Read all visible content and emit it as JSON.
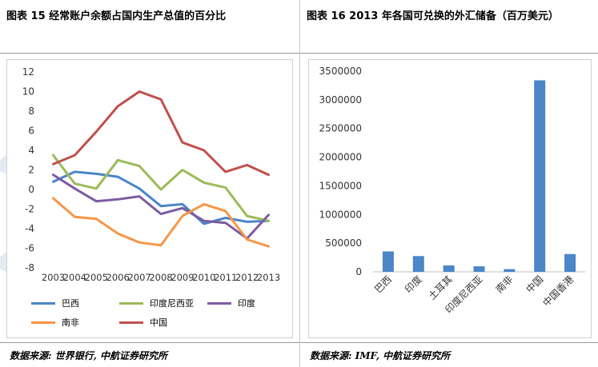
{
  "left_panel": {
    "title": "图表 15  经常账户余额占国内生产总值的百分比",
    "source": "数据来源: 世界银行, 中航证券研究所"
  },
  "right_panel": {
    "title": "图表 16 2013 年各国可兑换的外汇储备（百万美元）",
    "source": "数据来源: IMF, 中航证券研究所"
  },
  "chart_data": [
    {
      "type": "line",
      "title": "",
      "xlabel": "",
      "ylabel": "",
      "x": [
        "2003",
        "2004",
        "2005",
        "2006",
        "2007",
        "2008",
        "2009",
        "2010",
        "2011",
        "2012",
        "2013"
      ],
      "ylim": [
        -8,
        12
      ],
      "yticks": [
        -8,
        -6,
        -4,
        -2,
        0,
        2,
        4,
        6,
        8,
        10,
        12
      ],
      "grid": false,
      "legend_position": "bottom",
      "series": [
        {
          "name": "巴西",
          "color": "#4a86c8",
          "values": [
            0.8,
            1.8,
            1.6,
            1.3,
            0.1,
            -1.7,
            -1.5,
            -3.5,
            -2.9,
            -3.3,
            -3.2
          ]
        },
        {
          "name": "印度尼西亚",
          "color": "#9bbb59",
          "values": [
            3.5,
            0.6,
            0.1,
            3.0,
            2.4,
            0.0,
            2.0,
            0.7,
            0.2,
            -2.7,
            -3.2
          ]
        },
        {
          "name": "印度",
          "color": "#7e5aa2",
          "values": [
            1.5,
            0.1,
            -1.2,
            -1.0,
            -0.7,
            -2.5,
            -1.9,
            -3.2,
            -3.4,
            -5.0,
            -2.6
          ]
        },
        {
          "name": "南非",
          "color": "#f79646",
          "values": [
            -0.9,
            -2.8,
            -3.0,
            -4.5,
            -5.4,
            -5.7,
            -2.7,
            -1.5,
            -2.2,
            -5.1,
            -5.8
          ]
        },
        {
          "name": "中国",
          "color": "#c0504d",
          "values": [
            2.6,
            3.5,
            5.9,
            8.5,
            10.0,
            9.2,
            4.8,
            4.0,
            1.8,
            2.5,
            1.5
          ]
        }
      ]
    },
    {
      "type": "bar",
      "title": "",
      "xlabel": "",
      "ylabel": "",
      "categories": [
        "巴西",
        "印度",
        "土耳其",
        "印度尼西亚",
        "南非",
        "中国",
        "中国香港"
      ],
      "values": [
        356000,
        275000,
        112000,
        97000,
        47000,
        3340000,
        311000
      ],
      "ylim": [
        0,
        3500000
      ],
      "yticks": [
        0,
        500000,
        1000000,
        1500000,
        2000000,
        2500000,
        3000000,
        3500000
      ],
      "bar_color": "#4a86c8",
      "grid": false
    }
  ]
}
